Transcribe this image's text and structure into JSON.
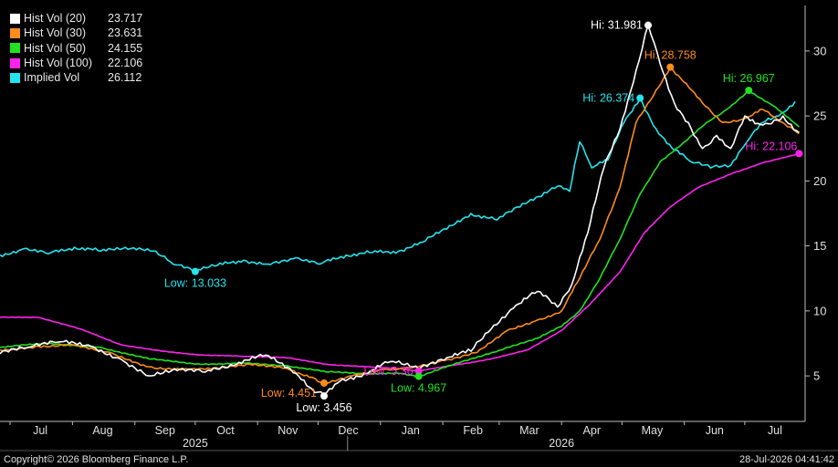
{
  "chart_data": {
    "type": "line",
    "y_axis": {
      "position": "right",
      "ticks": [
        5,
        10,
        15,
        20,
        25,
        30
      ],
      "ylim": [
        1.5,
        33.5
      ]
    },
    "x_axis": {
      "months": [
        {
          "label": "Jul",
          "x": "2025-07-01"
        },
        {
          "label": "Aug",
          "x": "2025-08-01"
        },
        {
          "label": "Sep",
          "x": "2025-09-01"
        },
        {
          "label": "Oct",
          "x": "2025-10-01"
        },
        {
          "label": "Nov",
          "x": "2025-11-01"
        },
        {
          "label": "Dec",
          "x": "2025-12-01"
        },
        {
          "label": "Jan",
          "x": "2026-01-01"
        },
        {
          "label": "Feb",
          "x": "2026-02-01"
        },
        {
          "label": "Mar",
          "x": "2026-03-01"
        },
        {
          "label": "Apr",
          "x": "2026-04-01"
        },
        {
          "label": "May",
          "x": "2026-05-01"
        },
        {
          "label": "Jun",
          "x": "2026-06-01"
        },
        {
          "label": "Jul",
          "x": "2026-07-01"
        }
      ],
      "years": [
        {
          "label": "2025",
          "x": "2025-10-01"
        },
        {
          "label": "2026",
          "x": "2026-04-01"
        }
      ],
      "xlim": [
        "2025-06-26",
        "2026-07-31"
      ]
    },
    "series": [
      {
        "name": "Hist Vol (20)",
        "color": "#ffffff",
        "last": "23.717",
        "points": [
          [
            "2025-06-26",
            6.7
          ],
          [
            "2025-07-10",
            7.2
          ],
          [
            "2025-07-25",
            7.6
          ],
          [
            "2025-08-10",
            7.3
          ],
          [
            "2025-08-25",
            6.3
          ],
          [
            "2025-09-08",
            5.0
          ],
          [
            "2025-09-22",
            5.4
          ],
          [
            "2025-10-06",
            5.3
          ],
          [
            "2025-10-20",
            5.8
          ],
          [
            "2025-11-05",
            6.6
          ],
          [
            "2025-11-20",
            5.2
          ],
          [
            "2025-11-28",
            4.0
          ],
          [
            "2025-12-04",
            3.456
          ],
          [
            "2025-12-12",
            4.6
          ],
          [
            "2025-12-24",
            5.2
          ],
          [
            "2026-01-06",
            6.1
          ],
          [
            "2026-01-20",
            5.5
          ],
          [
            "2026-02-03",
            6.4
          ],
          [
            "2026-02-15",
            6.9
          ],
          [
            "2026-02-25",
            8.6
          ],
          [
            "2026-03-08",
            10.2
          ],
          [
            "2026-03-20",
            11.5
          ],
          [
            "2026-03-30",
            10.3
          ],
          [
            "2026-04-06",
            12.0
          ],
          [
            "2026-04-14",
            16.0
          ],
          [
            "2026-04-22",
            21.0
          ],
          [
            "2026-04-30",
            24.0
          ],
          [
            "2026-05-08",
            28.5
          ],
          [
            "2026-05-14",
            31.981
          ],
          [
            "2026-05-20",
            29.0
          ],
          [
            "2026-05-27",
            26.0
          ],
          [
            "2026-06-03",
            24.5
          ],
          [
            "2026-06-10",
            22.5
          ],
          [
            "2026-06-17",
            23.5
          ],
          [
            "2026-06-24",
            22.5
          ],
          [
            "2026-07-01",
            25.0
          ],
          [
            "2026-07-10",
            24.3
          ],
          [
            "2026-07-20",
            25.0
          ],
          [
            "2026-07-28",
            23.717
          ]
        ]
      },
      {
        "name": "Hist Vol (30)",
        "color": "#ff8c1a",
        "last": "23.631",
        "points": [
          [
            "2025-06-26",
            7.0
          ],
          [
            "2025-07-15",
            7.3
          ],
          [
            "2025-08-01",
            7.4
          ],
          [
            "2025-08-20",
            6.8
          ],
          [
            "2025-09-08",
            5.7
          ],
          [
            "2025-09-25",
            5.5
          ],
          [
            "2025-10-10",
            5.6
          ],
          [
            "2025-10-28",
            5.9
          ],
          [
            "2025-11-15",
            5.6
          ],
          [
            "2025-11-28",
            4.9
          ],
          [
            "2025-12-04",
            4.451
          ],
          [
            "2025-12-18",
            5.0
          ],
          [
            "2026-01-02",
            5.5
          ],
          [
            "2026-01-18",
            5.7
          ],
          [
            "2026-02-01",
            6.2
          ],
          [
            "2026-02-18",
            6.8
          ],
          [
            "2026-03-05",
            8.5
          ],
          [
            "2026-03-20",
            9.3
          ],
          [
            "2026-04-01",
            10.0
          ],
          [
            "2026-04-10",
            12.5
          ],
          [
            "2026-04-20",
            15.5
          ],
          [
            "2026-04-30",
            19.5
          ],
          [
            "2026-05-08",
            24.5
          ],
          [
            "2026-05-18",
            27.0
          ],
          [
            "2026-05-25",
            28.758
          ],
          [
            "2026-06-02",
            27.5
          ],
          [
            "2026-06-10",
            26.0
          ],
          [
            "2026-06-20",
            24.5
          ],
          [
            "2026-07-01",
            24.8
          ],
          [
            "2026-07-10",
            25.5
          ],
          [
            "2026-07-18",
            24.6
          ],
          [
            "2026-07-28",
            23.631
          ]
        ]
      },
      {
        "name": "Hist Vol (50)",
        "color": "#22e222",
        "last": "24.155",
        "points": [
          [
            "2025-06-26",
            7.2
          ],
          [
            "2025-07-20",
            7.5
          ],
          [
            "2025-08-15",
            7.2
          ],
          [
            "2025-09-08",
            6.3
          ],
          [
            "2025-10-01",
            5.9
          ],
          [
            "2025-10-25",
            6.0
          ],
          [
            "2025-11-15",
            5.8
          ],
          [
            "2025-12-05",
            5.3
          ],
          [
            "2025-12-25",
            5.2
          ],
          [
            "2026-01-10",
            5.2
          ],
          [
            "2026-01-20",
            4.967
          ],
          [
            "2026-02-05",
            5.8
          ],
          [
            "2026-02-20",
            6.5
          ],
          [
            "2026-03-05",
            7.2
          ],
          [
            "2026-03-20",
            7.9
          ],
          [
            "2026-04-01",
            8.8
          ],
          [
            "2026-04-10",
            10.0
          ],
          [
            "2026-04-20",
            12.5
          ],
          [
            "2026-04-30",
            15.5
          ],
          [
            "2026-05-10",
            19.0
          ],
          [
            "2026-05-20",
            21.5
          ],
          [
            "2026-06-01",
            23.0
          ],
          [
            "2026-06-12",
            24.5
          ],
          [
            "2026-06-22",
            25.5
          ],
          [
            "2026-07-03",
            26.967
          ],
          [
            "2026-07-15",
            25.8
          ],
          [
            "2026-07-28",
            24.155
          ]
        ]
      },
      {
        "name": "Hist Vol (100)",
        "color": "#ff22ee",
        "last": "22.106",
        "points": [
          [
            "2025-06-26",
            9.5
          ],
          [
            "2025-07-15",
            9.5
          ],
          [
            "2025-08-05",
            8.6
          ],
          [
            "2025-08-25",
            7.4
          ],
          [
            "2025-09-15",
            6.9
          ],
          [
            "2025-10-05",
            6.6
          ],
          [
            "2025-10-25",
            6.5
          ],
          [
            "2025-11-15",
            6.4
          ],
          [
            "2025-12-05",
            5.9
          ],
          [
            "2025-12-25",
            5.7
          ],
          [
            "2026-01-08",
            5.6
          ],
          [
            "2026-01-20",
            5.36
          ],
          [
            "2026-02-05",
            5.8
          ],
          [
            "2026-02-25",
            6.3
          ],
          [
            "2026-03-15",
            7.0
          ],
          [
            "2026-04-01",
            8.5
          ],
          [
            "2026-04-15",
            10.5
          ],
          [
            "2026-04-30",
            13.0
          ],
          [
            "2026-05-12",
            16.0
          ],
          [
            "2026-05-25",
            18.0
          ],
          [
            "2026-06-08",
            19.5
          ],
          [
            "2026-06-25",
            20.6
          ],
          [
            "2026-07-10",
            21.4
          ],
          [
            "2026-07-28",
            22.106
          ]
        ]
      },
      {
        "name": "Implied Vol",
        "color": "#22e6ee",
        "last": "26.112",
        "points": [
          [
            "2025-06-26",
            14.3
          ],
          [
            "2025-07-08",
            14.8
          ],
          [
            "2025-07-20",
            14.4
          ],
          [
            "2025-08-02",
            14.9
          ],
          [
            "2025-08-15",
            14.6
          ],
          [
            "2025-08-30",
            14.8
          ],
          [
            "2025-09-10",
            14.6
          ],
          [
            "2025-09-20",
            13.6
          ],
          [
            "2025-10-01",
            13.033
          ],
          [
            "2025-10-12",
            13.5
          ],
          [
            "2025-10-25",
            13.9
          ],
          [
            "2025-11-06",
            13.6
          ],
          [
            "2025-11-20",
            14.1
          ],
          [
            "2025-12-02",
            13.6
          ],
          [
            "2025-12-15",
            14.3
          ],
          [
            "2025-12-28",
            14.5
          ],
          [
            "2026-01-10",
            14.6
          ],
          [
            "2026-01-22",
            15.3
          ],
          [
            "2026-02-03",
            16.3
          ],
          [
            "2026-02-15",
            17.5
          ],
          [
            "2026-02-28",
            17.0
          ],
          [
            "2026-03-10",
            18.0
          ],
          [
            "2026-03-22",
            18.8
          ],
          [
            "2026-03-30",
            19.6
          ],
          [
            "2026-04-05",
            19.2
          ],
          [
            "2026-04-10",
            23.0
          ],
          [
            "2026-04-16",
            21.0
          ],
          [
            "2026-04-24",
            21.6
          ],
          [
            "2026-05-02",
            24.5
          ],
          [
            "2026-05-10",
            26.374
          ],
          [
            "2026-05-18",
            24.0
          ],
          [
            "2026-05-26",
            22.5
          ],
          [
            "2026-06-04",
            21.5
          ],
          [
            "2026-06-14",
            21.0
          ],
          [
            "2026-06-24",
            21.2
          ],
          [
            "2026-07-02",
            23.0
          ],
          [
            "2026-07-10",
            24.5
          ],
          [
            "2026-07-18",
            25.0
          ],
          [
            "2026-07-26",
            26.112
          ]
        ]
      }
    ],
    "annotations": [
      {
        "text": "Hi: 31.981",
        "x": "2026-05-14",
        "y": 31.981,
        "color": "#ffffff",
        "text_color": "#ffffff",
        "pos": "left"
      },
      {
        "text": "Hi: 28.758",
        "x": "2026-05-25",
        "y": 28.758,
        "color": "#ff8c1a",
        "text_color": "#ff8c1a",
        "pos": "top"
      },
      {
        "text": "Hi: 26.374",
        "x": "2026-05-10",
        "y": 26.374,
        "color": "#22e6ee",
        "text_color": "#22e6ee",
        "pos": "left"
      },
      {
        "text": "Hi: 26.967",
        "x": "2026-07-03",
        "y": 26.967,
        "color": "#22e222",
        "text_color": "#22e222",
        "pos": "top"
      },
      {
        "text": "Hi: 22.106",
        "x": "2026-07-28",
        "y": 22.106,
        "color": "#ff22ee",
        "text_color": "#ff22ee",
        "pos": "above-left"
      },
      {
        "text": "Low: 13.033",
        "x": "2025-10-01",
        "y": 13.033,
        "color": "#22e6ee",
        "text_color": "#22e6ee",
        "pos": "below"
      },
      {
        "text": "Low: 4.451",
        "x": "2025-12-04",
        "y": 4.451,
        "color": "#ff8c1a",
        "text_color": "#ff8c1a",
        "pos": "below-left"
      },
      {
        "text": "Low: 3.456",
        "x": "2025-12-04",
        "y": 3.456,
        "color": "#ffffff",
        "text_color": "#ffffff",
        "pos": "below"
      },
      {
        "text": "Low: 5.36",
        "x": "2026-01-20",
        "y": 5.36,
        "color": "#ff22ee",
        "text_color": "#ff22ee",
        "pos": "left"
      },
      {
        "text": "Low: 4.967",
        "x": "2026-01-20",
        "y": 4.967,
        "color": "#22e222",
        "text_color": "#22e222",
        "pos": "below"
      }
    ],
    "grid": false,
    "legend": "top-left"
  },
  "footer": {
    "copyright": "Copyright© 2026 Bloomberg Finance L.P.",
    "timestamp": "28-Jul-2026 04:41:42"
  }
}
